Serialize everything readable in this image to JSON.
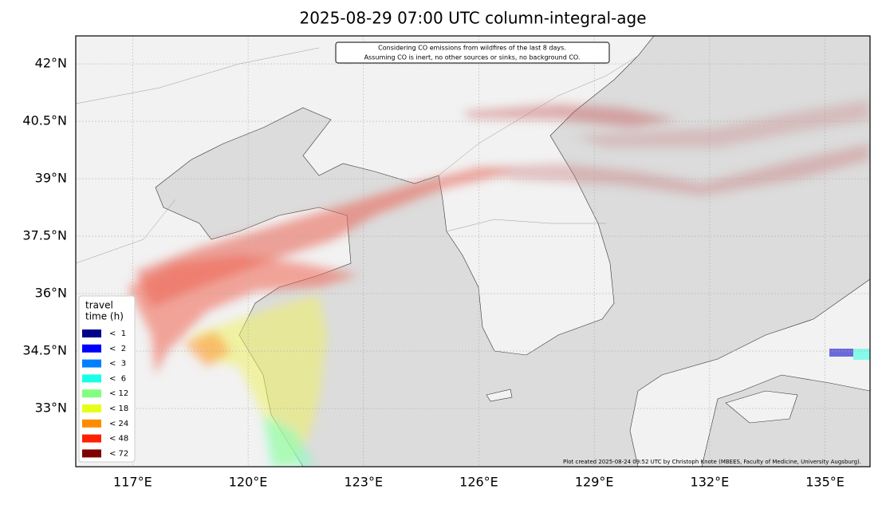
{
  "map": {
    "title": "2025-08-29 07:00 UTC column-integral-age",
    "annotation": [
      "Considering CO emissions from wildfires of the last 8 days.",
      "Assuming CO is inert, no other sources or sinks, no background CO."
    ],
    "credit": "Plot created 2025-08-24 09:52 UTC by Christoph Knote (MBEES, Faculty of Medicine, University Augsburg).",
    "xlim": [
      115.52,
      136.17
    ],
    "ylim": [
      31.48,
      42.73
    ],
    "xticks": [
      {
        "value": 117,
        "label": "117°E"
      },
      {
        "value": 120,
        "label": "120°E"
      },
      {
        "value": 123,
        "label": "123°E"
      },
      {
        "value": 126,
        "label": "126°E"
      },
      {
        "value": 129,
        "label": "129°E"
      },
      {
        "value": 132,
        "label": "132°E"
      },
      {
        "value": 135,
        "label": "135°E"
      }
    ],
    "yticks": [
      {
        "value": 33,
        "label": "33°N"
      },
      {
        "value": 34.5,
        "label": "34.5°N"
      },
      {
        "value": 36,
        "label": "36°N"
      },
      {
        "value": 37.5,
        "label": "37.5°N"
      },
      {
        "value": 39,
        "label": "39°N"
      },
      {
        "value": 40.5,
        "label": "40.5°N"
      },
      {
        "value": 42,
        "label": "42°N"
      }
    ],
    "grid": true,
    "legend": {
      "title": [
        "travel",
        "time (h)"
      ],
      "entries": [
        {
          "label": "<  1",
          "color": "#00008b"
        },
        {
          "label": "<  2",
          "color": "#0000ff"
        },
        {
          "label": "<  3",
          "color": "#0080ff"
        },
        {
          "label": "<  6",
          "color": "#19ffe6"
        },
        {
          "label": "< 12",
          "color": "#80ff80"
        },
        {
          "label": "< 18",
          "color": "#e6ff19"
        },
        {
          "label": "< 24",
          "color": "#ff8c00"
        },
        {
          "label": "< 48",
          "color": "#ff2000"
        },
        {
          "label": "< 72",
          "color": "#800000"
        }
      ]
    }
  }
}
